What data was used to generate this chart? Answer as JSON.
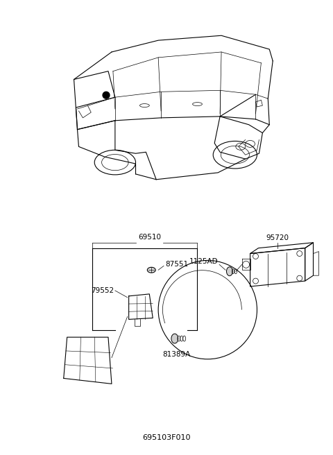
{
  "title": "695103F010",
  "background_color": "#ffffff",
  "text_color": "#000000",
  "font_size_labels": 7.5,
  "font_size_title": 8
}
